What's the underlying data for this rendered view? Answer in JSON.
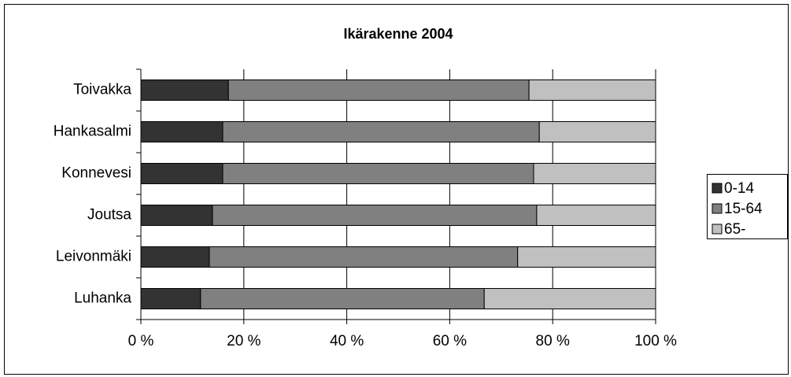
{
  "chart_data": {
    "type": "stacked-barh",
    "title": "Ikärakenne 2004",
    "categories": [
      "Toivakka",
      "Hankasalmi",
      "Konnevesi",
      "Joutsa",
      "Leivonmäki",
      "Luhanka"
    ],
    "series": [
      {
        "name": "0-14",
        "color": "#333333",
        "values": [
          17.0,
          15.9,
          15.9,
          13.9,
          13.3,
          11.6
        ]
      },
      {
        "name": "15-64",
        "color": "#808080",
        "values": [
          58.4,
          61.5,
          60.4,
          63.0,
          59.9,
          55.1
        ]
      },
      {
        "name": "65-",
        "color": "#c0c0c0",
        "values": [
          24.6,
          22.6,
          23.7,
          23.1,
          26.8,
          33.3
        ]
      }
    ],
    "xlim": [
      0,
      100
    ],
    "xticks": [
      {
        "value": 0,
        "label": "0 %"
      },
      {
        "value": 20,
        "label": "20 %"
      },
      {
        "value": 40,
        "label": "40 %"
      },
      {
        "value": 60,
        "label": "60 %"
      },
      {
        "value": 80,
        "label": "80 %"
      },
      {
        "value": 100,
        "label": "100 %"
      }
    ],
    "grid": true,
    "legend": "right"
  }
}
